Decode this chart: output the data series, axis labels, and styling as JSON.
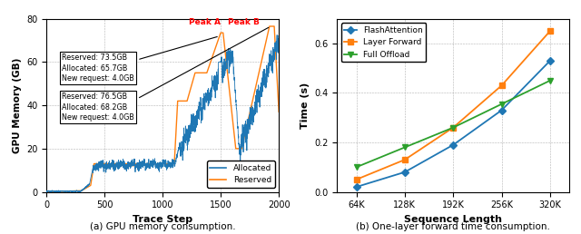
{
  "left": {
    "xlabel": "Trace Step",
    "ylabel": "GPU Memory (GB)",
    "xlim": [
      0,
      2000
    ],
    "ylim": [
      0,
      80
    ],
    "xticks": [
      0,
      500,
      1000,
      1500,
      2000
    ],
    "yticks": [
      0,
      20,
      40,
      60,
      80
    ],
    "allocated_color": "#1f77b4",
    "reserved_color": "#ff7f0e",
    "ann1_text": "Reserved: 73.5GB\nAllocated: 65.7GB\nNew request: 4.0GB",
    "ann2_text": "Reserved: 76.5GB\nAllocated: 68.2GB\nNew request: 4.0GB",
    "peak_a_text": "Peak A",
    "peak_b_text": "Peak B",
    "peak_a_color": "red",
    "peak_b_color": "red"
  },
  "right": {
    "xlabel": "Sequence Length",
    "ylabel": "Time (s)",
    "ylim": [
      0.0,
      0.7
    ],
    "xtick_labels": [
      "64K",
      "128K",
      "192K",
      "256K",
      "320K"
    ],
    "yticks": [
      0.0,
      0.2,
      0.4,
      0.6
    ],
    "flash_attention": [
      0.02,
      0.08,
      0.19,
      0.33,
      0.53
    ],
    "layer_forward": [
      0.05,
      0.13,
      0.26,
      0.43,
      0.65
    ],
    "full_offload": [
      0.1,
      0.18,
      0.26,
      0.355,
      0.45
    ],
    "flash_color": "#1f77b4",
    "layer_color": "#ff7f0e",
    "offload_color": "#2ca02c",
    "legend_labels": [
      "FlashAttention",
      "Layer Forward",
      "Full Offload"
    ]
  },
  "caption_left": "(a) GPU memory consumption.",
  "caption_right": "(b) One-layer forward time consumption."
}
